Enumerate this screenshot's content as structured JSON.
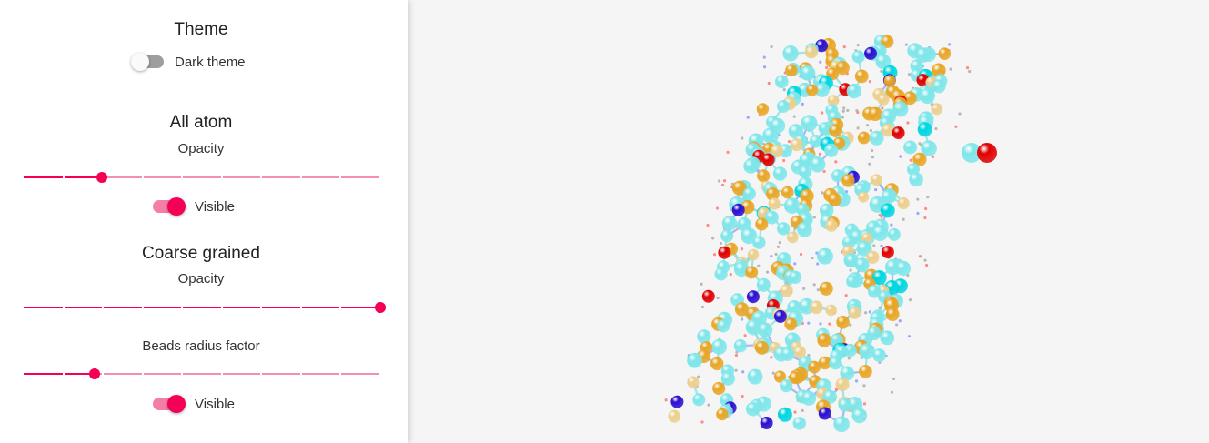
{
  "theme": {
    "heading": "Theme",
    "dark_theme_label": "Dark theme",
    "dark_theme_on": false
  },
  "all_atom": {
    "heading": "All atom",
    "opacity_label": "Opacity",
    "opacity_value": 0.22,
    "visible_label": "Visible",
    "visible_on": true
  },
  "coarse_grained": {
    "heading": "Coarse grained",
    "opacity_label": "Opacity",
    "opacity_value": 1.0,
    "beads_radius_label": "Beads radius factor",
    "beads_radius_value": 0.2,
    "visible_label": "Visible",
    "visible_on": true
  },
  "colors": {
    "accent": "#f50057",
    "accent_light": "#f48fb1",
    "viewer_background": "#f5f5f5",
    "bead_cyan": "#7fe6ea",
    "bead_bright_cyan": "#00d6e0",
    "bead_orange": "#e8a626",
    "bead_tan": "#eccf8e",
    "bead_blue": "#2a0fd0",
    "bead_red": "#e00000"
  }
}
